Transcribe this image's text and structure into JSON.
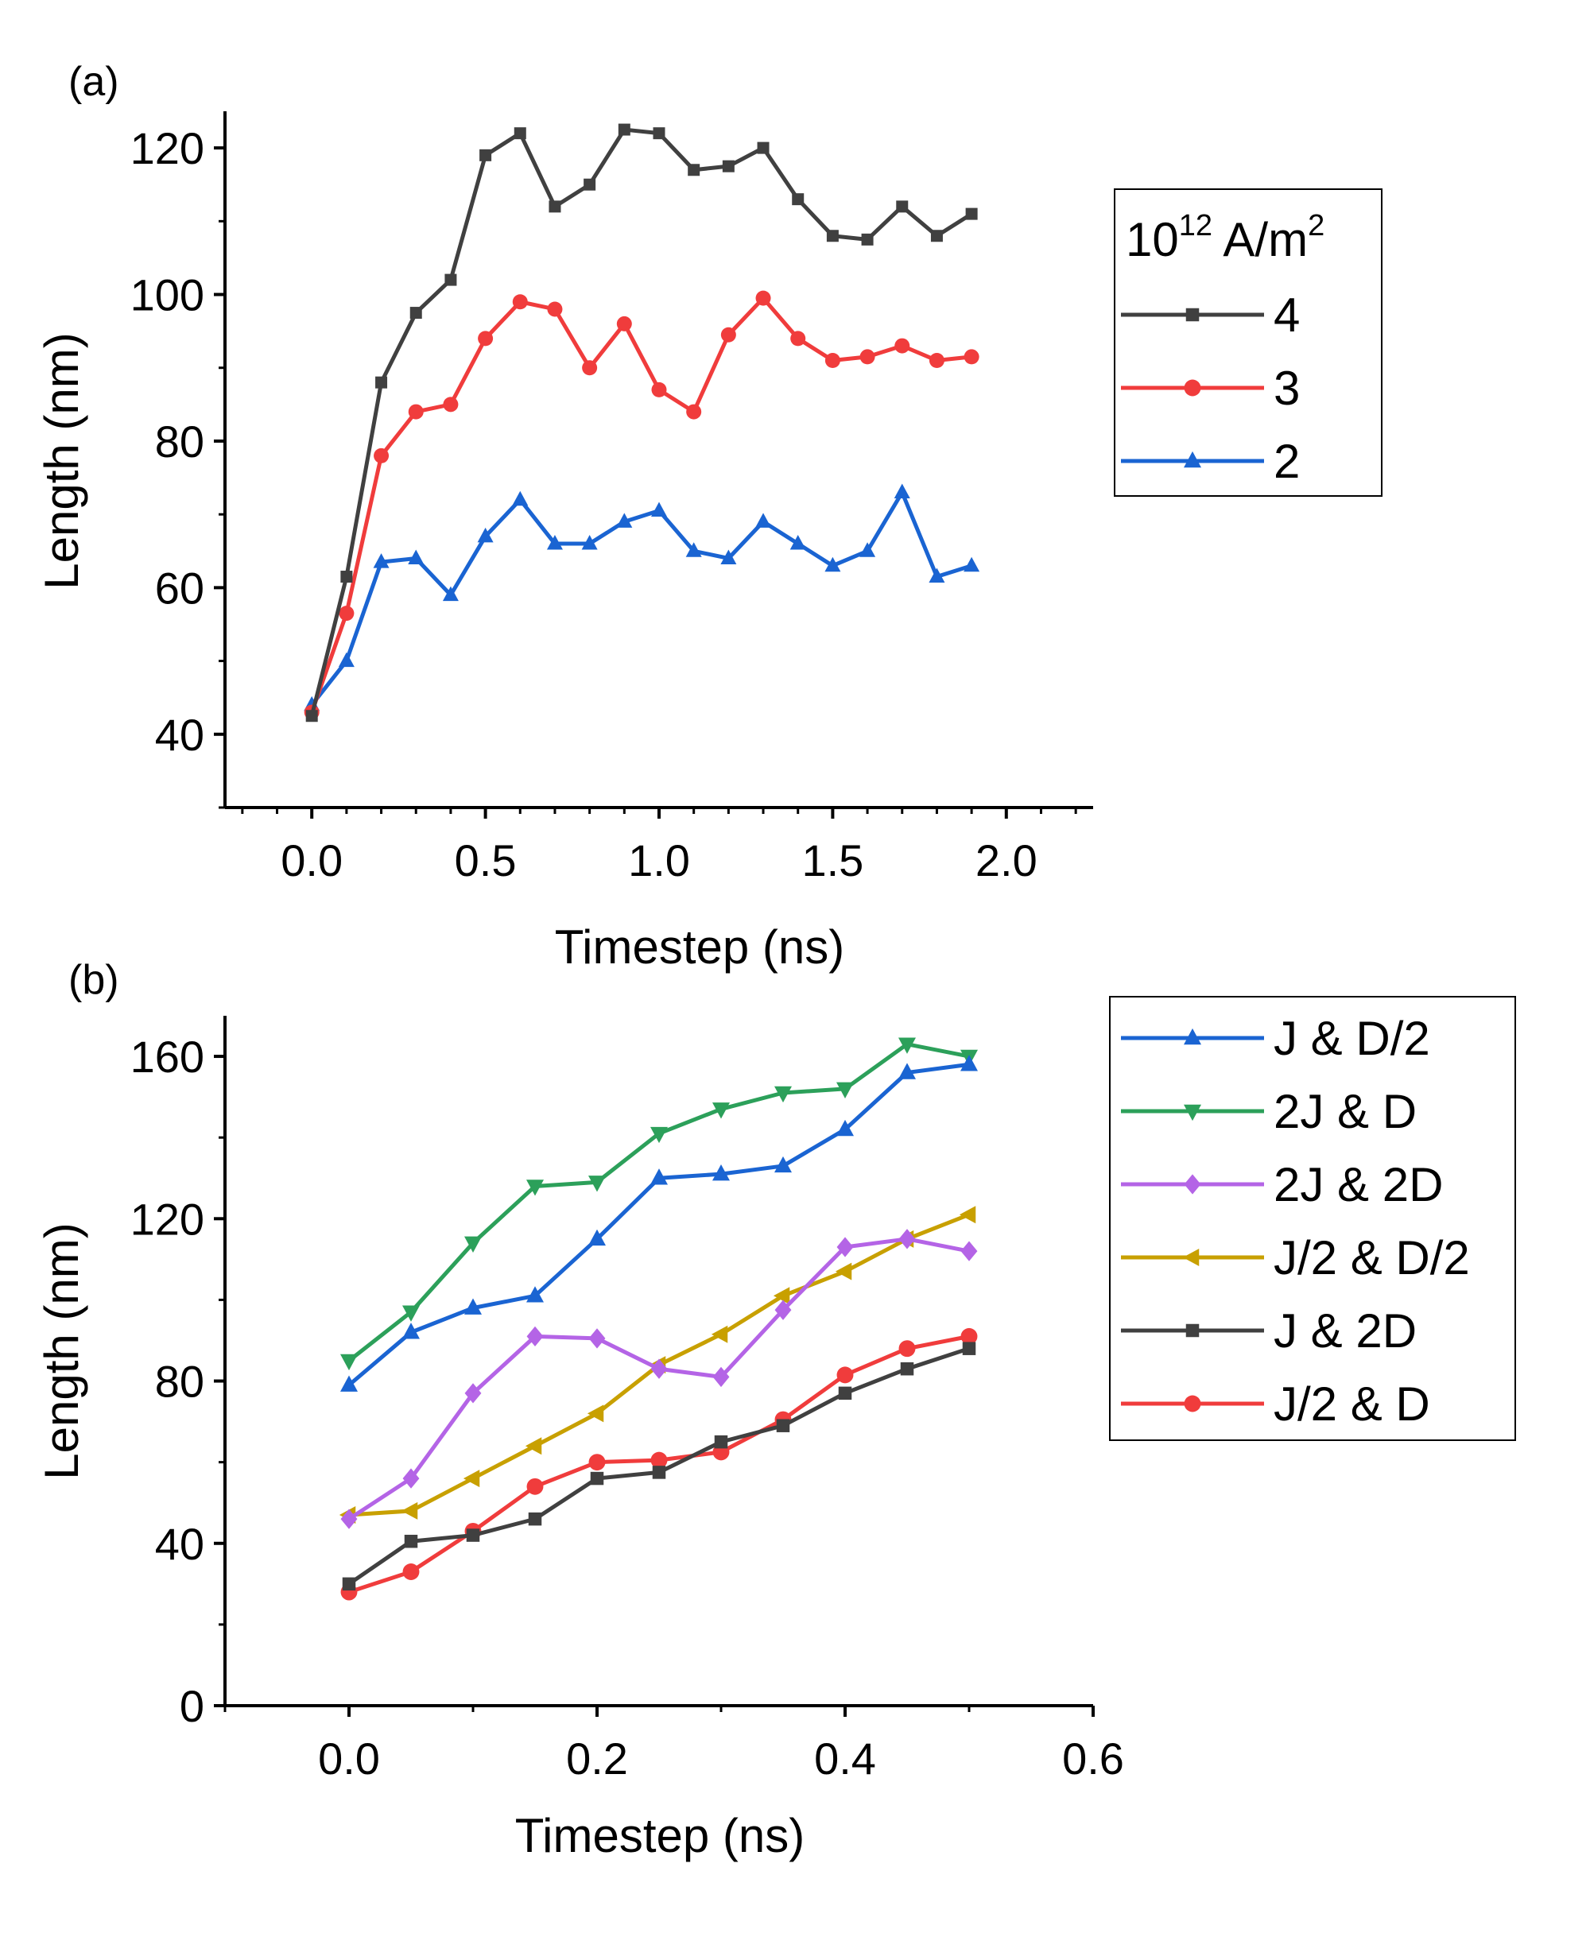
{
  "chart_data": [
    {
      "type": "line",
      "panel_label": "(a)",
      "xlabel": "Timestep (ns)",
      "ylabel": "Length (nm)",
      "xlim": [
        -0.25,
        2.25
      ],
      "ylim": [
        30,
        125
      ],
      "xticks": [
        0.0,
        0.5,
        1.0,
        1.5,
        2.0
      ],
      "xtick_labels": [
        "0.0",
        "0.5",
        "1.0",
        "1.5",
        "2.0"
      ],
      "yticks": [
        40,
        60,
        80,
        100,
        120
      ],
      "ytick_labels": [
        "40",
        "60",
        "80",
        "100",
        "120"
      ],
      "grid": false,
      "legend_title_base": "10",
      "legend_title_sup": "12",
      "legend_title_unit": " A/m",
      "legend_title_unit_sup": "2",
      "legend_position": "right",
      "series": [
        {
          "name": "4",
          "color": "#404040",
          "marker": "square",
          "x": [
            0.0,
            0.1,
            0.2,
            0.3,
            0.4,
            0.5,
            0.6,
            0.7,
            0.8,
            0.9,
            1.0,
            1.1,
            1.2,
            1.3,
            1.4,
            1.5,
            1.6,
            1.7,
            1.8,
            1.9
          ],
          "values": [
            42.5,
            61.5,
            88,
            97.5,
            102,
            119,
            122,
            112,
            115,
            122.5,
            122,
            117,
            117.5,
            120,
            113,
            108,
            107.5,
            112,
            108,
            111
          ]
        },
        {
          "name": "3",
          "color": "#f03c3c",
          "marker": "circle",
          "x": [
            0.0,
            0.1,
            0.2,
            0.3,
            0.4,
            0.5,
            0.6,
            0.7,
            0.8,
            0.9,
            1.0,
            1.1,
            1.2,
            1.3,
            1.4,
            1.5,
            1.6,
            1.7,
            1.8,
            1.9
          ],
          "values": [
            43,
            56.5,
            78,
            84,
            85,
            94,
            99,
            98,
            90,
            96,
            87,
            84,
            94.5,
            99.5,
            94,
            91,
            91.5,
            93,
            91,
            91.5
          ]
        },
        {
          "name": "2",
          "color": "#1a64d2",
          "marker": "triangle-up",
          "x": [
            0.0,
            0.1,
            0.2,
            0.3,
            0.4,
            0.5,
            0.6,
            0.7,
            0.8,
            0.9,
            1.0,
            1.1,
            1.2,
            1.3,
            1.4,
            1.5,
            1.6,
            1.7,
            1.8,
            1.9
          ],
          "values": [
            44,
            50,
            63.5,
            64,
            59,
            67,
            72,
            66,
            66,
            69,
            70.5,
            65,
            64,
            69,
            66,
            63,
            65,
            73,
            61.5,
            63
          ]
        }
      ]
    },
    {
      "type": "line",
      "panel_label": "(b)",
      "xlabel": "Timestep (ns)",
      "ylabel": "Length (nm)",
      "xlim": [
        -0.1,
        0.6
      ],
      "ylim": [
        0,
        170
      ],
      "xticks": [
        0.0,
        0.2,
        0.4,
        0.6
      ],
      "xtick_labels": [
        "0.0",
        "0.2",
        "0.4",
        "0.6"
      ],
      "yticks": [
        0,
        40,
        80,
        120,
        160
      ],
      "ytick_labels": [
        "0",
        "40",
        "80",
        "120",
        "160"
      ],
      "grid": false,
      "legend_position": "right",
      "series": [
        {
          "name": "J & D/2",
          "color": "#1a64d2",
          "marker": "triangle-up",
          "x": [
            0.0,
            0.05,
            0.1,
            0.15,
            0.2,
            0.25,
            0.3,
            0.35,
            0.4,
            0.45,
            0.5
          ],
          "values": [
            79,
            92,
            98,
            101,
            115,
            130,
            131,
            133,
            142,
            156,
            158
          ]
        },
        {
          "name": "2J & D",
          "color": "#2ca05a",
          "marker": "triangle-down",
          "x": [
            0.0,
            0.05,
            0.1,
            0.15,
            0.2,
            0.25,
            0.3,
            0.35,
            0.4,
            0.45,
            0.5
          ],
          "values": [
            85,
            97,
            114,
            128,
            129,
            141,
            147,
            151,
            152,
            163,
            160
          ]
        },
        {
          "name": "2J & 2D",
          "color": "#b464e6",
          "marker": "diamond",
          "x": [
            0.0,
            0.05,
            0.1,
            0.15,
            0.2,
            0.25,
            0.3,
            0.35,
            0.4,
            0.45,
            0.5
          ],
          "values": [
            46,
            56,
            77,
            91,
            90.5,
            83,
            81,
            97.5,
            113,
            115,
            112
          ]
        },
        {
          "name": "J/2 & D/2",
          "color": "#c8a000",
          "marker": "triangle-left",
          "x": [
            0.0,
            0.05,
            0.1,
            0.15,
            0.2,
            0.25,
            0.3,
            0.35,
            0.4,
            0.45,
            0.5
          ],
          "values": [
            47,
            48,
            56,
            64,
            72,
            84,
            91.5,
            101,
            107,
            115,
            121
          ]
        },
        {
          "name": "J & 2D",
          "color": "#404040",
          "marker": "square",
          "x": [
            0.0,
            0.05,
            0.1,
            0.15,
            0.2,
            0.25,
            0.3,
            0.35,
            0.4,
            0.45,
            0.5
          ],
          "values": [
            30,
            40.5,
            42,
            46,
            56,
            57.5,
            65,
            69,
            77,
            83,
            88
          ]
        },
        {
          "name": "J/2 & D",
          "color": "#f03c3c",
          "marker": "circle",
          "x": [
            0.0,
            0.05,
            0.1,
            0.15,
            0.2,
            0.25,
            0.3,
            0.35,
            0.4,
            0.45,
            0.5
          ],
          "values": [
            28,
            33,
            43,
            54,
            60,
            60.5,
            62.5,
            70.5,
            81.5,
            88,
            91
          ]
        }
      ]
    }
  ]
}
